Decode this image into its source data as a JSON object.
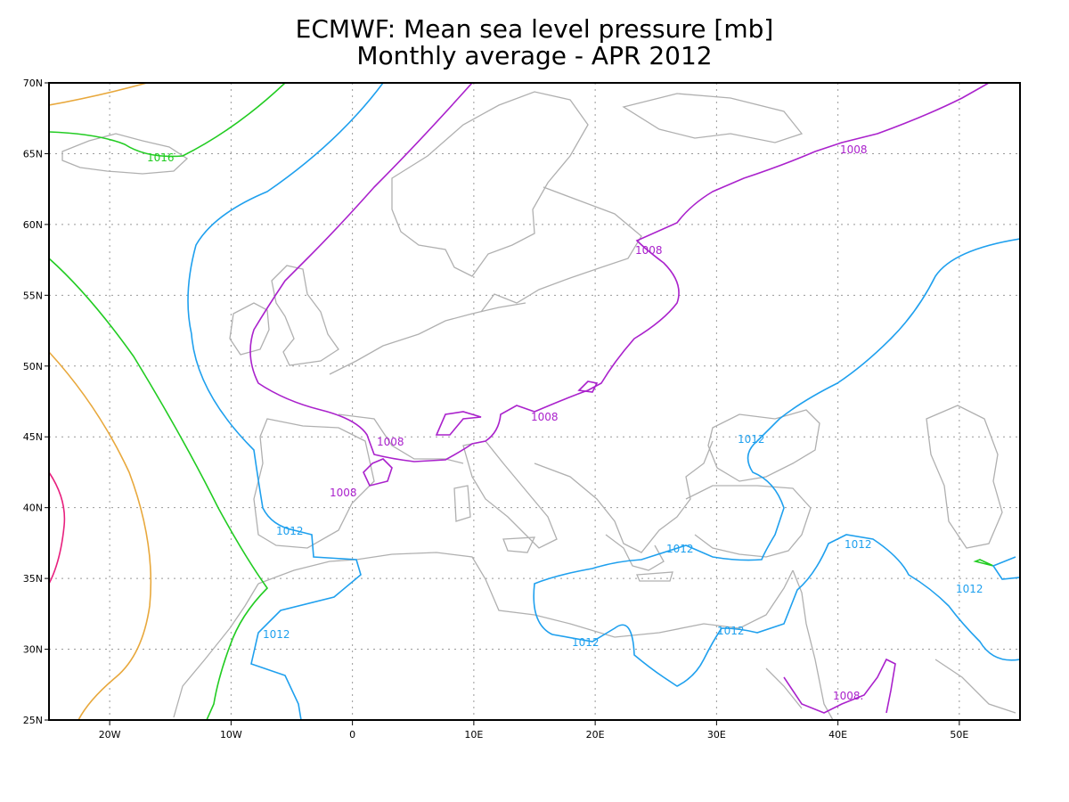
{
  "map": {
    "title_line1": "ECMWF: Mean sea level pressure [mb]",
    "title_line2": "Monthly average - APR 2012",
    "lon_ticks": [
      "20W",
      "10W",
      "0",
      "10E",
      "20E",
      "30E",
      "40E",
      "50E"
    ],
    "lat_ticks": [
      "70N",
      "65N",
      "60N",
      "55N",
      "50N",
      "45N",
      "40N",
      "35N",
      "30N",
      "25N"
    ],
    "lon_values": [
      -20,
      -10,
      0,
      10,
      20,
      30,
      40,
      50
    ],
    "lat_values": [
      70,
      65,
      60,
      55,
      50,
      45,
      40,
      35,
      30,
      25
    ],
    "extent": {
      "lon_min": -25,
      "lon_max": 55,
      "lat_min": 25,
      "lat_max": 70
    },
    "contour_labels": [
      {
        "text": "1016",
        "color": "#22cc22"
      },
      {
        "text": "1008",
        "color": "#aa22cc"
      },
      {
        "text": "1008",
        "color": "#aa22cc"
      },
      {
        "text": "1008",
        "color": "#aa22cc"
      },
      {
        "text": "1008",
        "color": "#aa22cc"
      },
      {
        "text": "1008",
        "color": "#aa22cc"
      },
      {
        "text": "1008.",
        "color": "#aa22cc"
      },
      {
        "text": "1012",
        "color": "#1fa0ee"
      },
      {
        "text": "1012",
        "color": "#1fa0ee"
      },
      {
        "text": "1012",
        "color": "#1fa0ee"
      },
      {
        "text": "1012",
        "color": "#1fa0ee"
      },
      {
        "text": "1012",
        "color": "#1fa0ee"
      },
      {
        "text": "1012",
        "color": "#1fa0ee"
      },
      {
        "text": "1012",
        "color": "#1fa0ee"
      },
      {
        "text": "1012",
        "color": "#1fa0ee"
      }
    ],
    "colors": {
      "contour_1008": "#aa22cc",
      "contour_1012": "#1fa0ee",
      "contour_1016": "#22cc22",
      "contour_1020": "#e8a83c",
      "contour_1024": "#e8207e",
      "coastline": "#b0b0b0",
      "grid": "#999999"
    }
  }
}
